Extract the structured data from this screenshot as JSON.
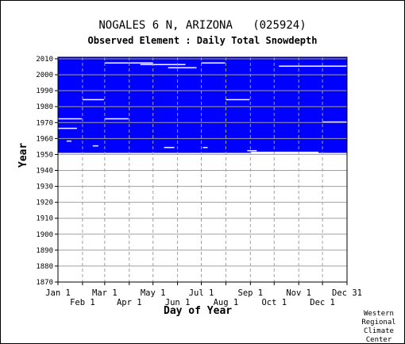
{
  "chart_data": {
    "type": "heatmap",
    "title": "NOGALES 6 N, ARIZONA   (025924)",
    "subtitle": "Observed Element : Daily Total Snowdepth",
    "xlabel": "Day of Year",
    "ylabel": "Year",
    "x_ticks_top_row": [
      "Jan 1",
      "Mar 1",
      "May 1",
      "Jul 1",
      "Sep 1",
      "Nov 1",
      "Dec 31"
    ],
    "x_ticks_bottom_row": [
      "Feb 1",
      "Apr 1",
      "Jun 1",
      "Aug 1",
      "Oct 1",
      "Dec 1"
    ],
    "y_ticks": [
      "1870",
      "1880",
      "1890",
      "1900",
      "1910",
      "1920",
      "1930",
      "1940",
      "1950",
      "1960",
      "1970",
      "1980",
      "1990",
      "2000",
      "2010"
    ],
    "ylim": [
      1870,
      2011
    ],
    "xlim": [
      1,
      366
    ],
    "grid": true,
    "legend": "none",
    "colors": {
      "observed": "#0000ff",
      "background": "#ffffff",
      "grid": "#a0a0a0"
    },
    "observed_block": {
      "year_start": 1951,
      "year_end": 2010,
      "day_start": 1,
      "day_end": 366
    },
    "missing_segments": [
      {
        "year": 1972,
        "day_start": 1,
        "day_end": 31
      },
      {
        "year": 1972,
        "day_start": 60,
        "day_end": 90
      },
      {
        "year": 1984,
        "day_start": 32,
        "day_end": 59
      },
      {
        "year": 1966,
        "day_start": 1,
        "day_end": 25
      },
      {
        "year": 1970,
        "day_start": 335,
        "day_end": 366
      },
      {
        "year": 1984,
        "day_start": 213,
        "day_end": 243
      },
      {
        "year": 2007,
        "day_start": 60,
        "day_end": 121
      },
      {
        "year": 2006,
        "day_start": 105,
        "day_end": 162
      },
      {
        "year": 2007,
        "day_start": 182,
        "day_end": 212
      },
      {
        "year": 2005,
        "day_start": 280,
        "day_end": 366
      },
      {
        "year": 2004,
        "day_start": 140,
        "day_end": 176
      },
      {
        "year": 1954,
        "day_start": 135,
        "day_end": 148
      },
      {
        "year": 1952,
        "day_start": 240,
        "day_end": 252
      },
      {
        "year": 1951,
        "day_start": 245,
        "day_end": 330
      },
      {
        "year": 1955,
        "day_start": 45,
        "day_end": 52
      },
      {
        "year": 1954,
        "day_start": 184,
        "day_end": 190
      },
      {
        "year": 1958,
        "day_start": 12,
        "day_end": 18
      }
    ]
  },
  "credit": [
    "Western",
    "Regional",
    "Climate",
    "Center"
  ]
}
